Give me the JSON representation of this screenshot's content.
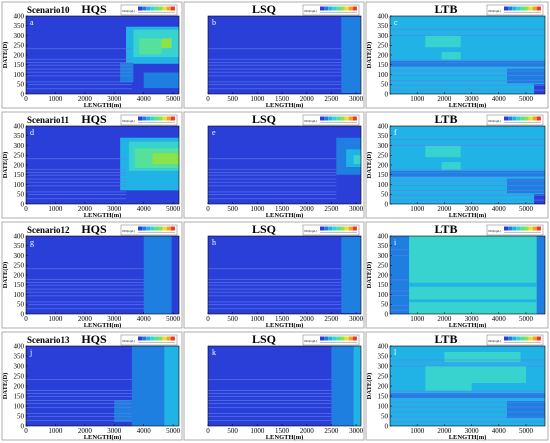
{
  "figure": {
    "row_scenarios": [
      "Scenario10",
      "Scenario11",
      "Scenario12",
      "Scenario13"
    ],
    "col_titles": [
      "HQS",
      "LSQ",
      "LTB"
    ],
    "panel_letters": [
      [
        "a",
        "b",
        "c"
      ],
      [
        "d",
        "e",
        "f"
      ],
      [
        "g",
        "h",
        "i"
      ],
      [
        "j",
        "k",
        "l"
      ]
    ],
    "colorbar_label": "DO(mg/L)"
  },
  "colors": {
    "background_blue": "#2a3fd8",
    "scale": [
      "#2a3fd8",
      "#1f7fe0",
      "#22b3e6",
      "#39d3cf",
      "#56e19a",
      "#8be34a",
      "#e8e13a",
      "#f5a125",
      "#ee3a1e"
    ]
  },
  "chart_data": [
    {
      "type": "heatmap",
      "id": "a",
      "site": "HQS",
      "scenario": "Scenario10",
      "xlabel": "LENGTH(m)",
      "ylabel": "DATE(D)",
      "xlim": [
        0,
        5200
      ],
      "ylim": [
        0,
        400
      ],
      "xticks": [
        0,
        1000,
        2000,
        3000,
        4000,
        5000
      ],
      "yticks": [
        0,
        50,
        100,
        150,
        200,
        250,
        300,
        350,
        400
      ],
      "regions": [
        {
          "x": [
            3400,
            5200
          ],
          "y": [
            155,
            345
          ],
          "level": 2
        },
        {
          "x": [
            3650,
            5200
          ],
          "y": [
            190,
            330
          ],
          "level": 3
        },
        {
          "x": [
            3850,
            4600
          ],
          "y": [
            205,
            285
          ],
          "level": 4
        },
        {
          "x": [
            4600,
            4950
          ],
          "y": [
            235,
            285
          ],
          "level": 5
        },
        {
          "x": [
            3200,
            3650
          ],
          "y": [
            60,
            160
          ],
          "level": 1
        },
        {
          "x": [
            4000,
            5200
          ],
          "y": [
            30,
            110
          ],
          "level": 1
        }
      ],
      "stripes": [
        27,
        48,
        62,
        93,
        112,
        128,
        148,
        162,
        178,
        232
      ],
      "stripe_x": [
        0,
        3600
      ]
    },
    {
      "type": "heatmap",
      "id": "b",
      "site": "LSQ",
      "scenario": "Scenario10",
      "xlabel": "LENGTH(m)",
      "ylabel": "",
      "xlim": [
        0,
        3100
      ],
      "ylim": [
        0,
        400
      ],
      "xticks": [
        0,
        500,
        1000,
        1500,
        2000,
        2500,
        3000
      ],
      "yticks": [],
      "regions": [
        {
          "x": [
            2700,
            3100
          ],
          "y": [
            5,
            395
          ],
          "level": 1
        }
      ],
      "stripes": [
        27,
        48,
        62,
        93,
        112,
        128,
        148,
        162,
        178,
        232
      ],
      "stripe_x": [
        0,
        2700
      ]
    },
    {
      "type": "heatmap",
      "id": "c",
      "site": "LTB",
      "scenario": "Scenario10",
      "xlabel": "LENGTH(m)",
      "ylabel": "DATE(D)",
      "xlim": [
        0,
        5700
      ],
      "ylim": [
        0,
        400
      ],
      "xticks": [
        1000,
        2000,
        3000,
        4000,
        5000
      ],
      "yticks": [
        0,
        50,
        100,
        150,
        200,
        250,
        300,
        350,
        400
      ],
      "regions": [
        {
          "x": [
            0,
            5700
          ],
          "y": [
            0,
            400
          ],
          "level": 2
        },
        {
          "x": [
            1300,
            2600
          ],
          "y": [
            240,
            300
          ],
          "level": 3
        },
        {
          "x": [
            1900,
            2600
          ],
          "y": [
            175,
            215
          ],
          "level": 3
        },
        {
          "x": [
            0,
            5700
          ],
          "y": [
            140,
            170
          ],
          "level": 1
        },
        {
          "x": [
            4300,
            5700
          ],
          "y": [
            55,
            130
          ],
          "level": 1
        },
        {
          "x": [
            5300,
            5700
          ],
          "y": [
            0,
            50
          ],
          "level": 0
        }
      ],
      "stripes": [
        20,
        45,
        70,
        95,
        118,
        140,
        160,
        175,
        300,
        330
      ],
      "stripe_x": [
        0,
        5700
      ]
    },
    {
      "type": "heatmap",
      "id": "d",
      "site": "HQS",
      "scenario": "Scenario11",
      "xlabel": "LENGTH(m)",
      "ylabel": "DATE(D)",
      "xlim": [
        0,
        5200
      ],
      "ylim": [
        0,
        400
      ],
      "xticks": [
        0,
        1000,
        2000,
        3000,
        4000,
        5000
      ],
      "yticks": [
        0,
        50,
        100,
        150,
        200,
        250,
        300,
        350,
        400
      ],
      "regions": [
        {
          "x": [
            3200,
            5200
          ],
          "y": [
            70,
            340
          ],
          "level": 2
        },
        {
          "x": [
            3500,
            5200
          ],
          "y": [
            170,
            320
          ],
          "level": 3
        },
        {
          "x": [
            3700,
            5200
          ],
          "y": [
            185,
            285
          ],
          "level": 4
        },
        {
          "x": [
            4300,
            5200
          ],
          "y": [
            205,
            260
          ],
          "level": 5
        }
      ],
      "stripes": [
        27,
        48,
        62,
        93,
        112,
        128,
        148,
        162,
        178,
        232
      ],
      "stripe_x": [
        0,
        3400
      ]
    },
    {
      "type": "heatmap",
      "id": "e",
      "site": "LSQ",
      "scenario": "Scenario11",
      "xlabel": "LENGTH(m)",
      "ylabel": "",
      "xlim": [
        0,
        3100
      ],
      "ylim": [
        0,
        400
      ],
      "xticks": [
        0,
        500,
        1000,
        1500,
        2000,
        2500,
        3000
      ],
      "yticks": [],
      "regions": [
        {
          "x": [
            2600,
            3100
          ],
          "y": [
            150,
            340
          ],
          "level": 1
        },
        {
          "x": [
            2800,
            3100
          ],
          "y": [
            190,
            280
          ],
          "level": 2
        },
        {
          "x": [
            2950,
            3100
          ],
          "y": [
            205,
            250
          ],
          "level": 3
        }
      ],
      "stripes": [
        27,
        48,
        62,
        93,
        112,
        128,
        148,
        162,
        178,
        232
      ],
      "stripe_x": [
        0,
        2600
      ]
    },
    {
      "type": "heatmap",
      "id": "f",
      "site": "LTB",
      "scenario": "Scenario11",
      "xlabel": "LENGTH(m)",
      "ylabel": "DATE(D)",
      "xlim": [
        0,
        5700
      ],
      "ylim": [
        0,
        400
      ],
      "xticks": [
        1000,
        2000,
        3000,
        4000,
        5000
      ],
      "yticks": [
        0,
        50,
        100,
        150,
        200,
        250,
        300,
        350,
        400
      ],
      "regions": [
        {
          "x": [
            0,
            5700
          ],
          "y": [
            0,
            400
          ],
          "level": 2
        },
        {
          "x": [
            1300,
            2600
          ],
          "y": [
            240,
            300
          ],
          "level": 3
        },
        {
          "x": [
            1900,
            2600
          ],
          "y": [
            175,
            215
          ],
          "level": 3
        },
        {
          "x": [
            0,
            5700
          ],
          "y": [
            140,
            170
          ],
          "level": 1
        },
        {
          "x": [
            4300,
            5700
          ],
          "y": [
            55,
            130
          ],
          "level": 1
        },
        {
          "x": [
            5300,
            5700
          ],
          "y": [
            0,
            50
          ],
          "level": 0
        }
      ],
      "stripes": [
        20,
        45,
        70,
        95,
        118,
        140,
        160,
        175,
        300,
        330
      ],
      "stripe_x": [
        0,
        5700
      ]
    },
    {
      "type": "heatmap",
      "id": "g",
      "site": "HQS",
      "scenario": "Scenario12",
      "xlabel": "LENGTH(m)",
      "ylabel": "DATE(D)",
      "xlim": [
        0,
        5200
      ],
      "ylim": [
        0,
        400
      ],
      "xticks": [
        0,
        1000,
        2000,
        3000,
        4000,
        5000
      ],
      "yticks": [
        0,
        50,
        100,
        150,
        200,
        250,
        300,
        350,
        400
      ],
      "regions": [
        {
          "x": [
            4000,
            5200
          ],
          "y": [
            0,
            400
          ],
          "level": 1
        },
        {
          "x": [
            4950,
            5200
          ],
          "y": [
            0,
            400
          ],
          "level": 0
        }
      ],
      "stripes": [
        27,
        48,
        62,
        93,
        112,
        128,
        148,
        162,
        178,
        232
      ],
      "stripe_x": [
        0,
        4000
      ]
    },
    {
      "type": "heatmap",
      "id": "h",
      "site": "LSQ",
      "scenario": "Scenario12",
      "xlabel": "LENGTH(m)",
      "ylabel": "",
      "xlim": [
        0,
        3100
      ],
      "ylim": [
        0,
        400
      ],
      "xticks": [
        0,
        500,
        1000,
        1500,
        2000,
        2500,
        3000
      ],
      "yticks": [],
      "regions": [
        {
          "x": [
            2700,
            3100
          ],
          "y": [
            5,
            395
          ],
          "level": 1
        }
      ],
      "stripes": [
        27,
        48,
        62,
        93,
        112,
        128,
        148,
        162,
        178,
        232
      ],
      "stripe_x": [
        0,
        2700
      ]
    },
    {
      "type": "heatmap",
      "id": "i",
      "site": "LTB",
      "scenario": "Scenario12",
      "xlabel": "LENGTH(m)",
      "ylabel": "DATE(D)",
      "xlim": [
        0,
        5700
      ],
      "ylim": [
        0,
        400
      ],
      "xticks": [
        1000,
        2000,
        3000,
        4000,
        5000
      ],
      "yticks": [
        0,
        50,
        100,
        150,
        200,
        250,
        300,
        350,
        400
      ],
      "regions": [
        {
          "x": [
            700,
            5400
          ],
          "y": [
            0,
            400
          ],
          "level": 3
        },
        {
          "x": [
            0,
            700
          ],
          "y": [
            0,
            400
          ],
          "level": 1
        },
        {
          "x": [
            5400,
            5700
          ],
          "y": [
            0,
            400
          ],
          "level": 1
        },
        {
          "x": [
            700,
            5400
          ],
          "y": [
            140,
            160
          ],
          "level": 2
        },
        {
          "x": [
            700,
            5400
          ],
          "y": [
            60,
            75
          ],
          "level": 2
        }
      ],
      "stripes": [
        20,
        45,
        95,
        118,
        175,
        300,
        330
      ],
      "stripe_x": [
        0,
        700
      ]
    },
    {
      "type": "heatmap",
      "id": "j",
      "site": "HQS",
      "scenario": "Scenario13",
      "xlabel": "LENGTH(m)",
      "ylabel": "DATE(D)",
      "xlim": [
        0,
        5200
      ],
      "ylim": [
        0,
        400
      ],
      "xticks": [
        0,
        1000,
        2000,
        3000,
        4000,
        5000
      ],
      "yticks": [
        0,
        50,
        100,
        150,
        200,
        250,
        300,
        350,
        400
      ],
      "regions": [
        {
          "x": [
            3600,
            5200
          ],
          "y": [
            0,
            400
          ],
          "level": 1
        },
        {
          "x": [
            4700,
            5200
          ],
          "y": [
            0,
            400
          ],
          "level": 2
        },
        {
          "x": [
            3000,
            3600
          ],
          "y": [
            20,
            130
          ],
          "level": 1
        }
      ],
      "stripes": [
        27,
        48,
        62,
        93,
        112,
        128,
        148,
        162,
        178,
        232
      ],
      "stripe_x": [
        0,
        3600
      ]
    },
    {
      "type": "heatmap",
      "id": "k",
      "site": "LSQ",
      "scenario": "Scenario13",
      "xlabel": "LENGTH(m)",
      "ylabel": "",
      "xlim": [
        0,
        3100
      ],
      "ylim": [
        0,
        400
      ],
      "xticks": [
        0,
        500,
        1000,
        1500,
        2000,
        2500,
        3000
      ],
      "yticks": [],
      "regions": [
        {
          "x": [
            2500,
            3100
          ],
          "y": [
            0,
            400
          ],
          "level": 1
        },
        {
          "x": [
            2950,
            3100
          ],
          "y": [
            0,
            400
          ],
          "level": 2
        }
      ],
      "stripes": [
        27,
        48,
        62,
        93,
        112,
        128,
        148,
        162,
        178,
        232
      ],
      "stripe_x": [
        0,
        2500
      ]
    },
    {
      "type": "heatmap",
      "id": "l",
      "site": "LTB",
      "scenario": "Scenario13",
      "xlabel": "LENGTH(m)",
      "ylabel": "DATE(D)",
      "xlim": [
        0,
        5700
      ],
      "ylim": [
        0,
        400
      ],
      "xticks": [
        1000,
        2000,
        3000,
        4000,
        5000
      ],
      "yticks": [
        0,
        50,
        100,
        150,
        200,
        250,
        300,
        350,
        400
      ],
      "regions": [
        {
          "x": [
            0,
            5700
          ],
          "y": [
            0,
            400
          ],
          "level": 2
        },
        {
          "x": [
            2000,
            4800
          ],
          "y": [
            320,
            370
          ],
          "level": 3
        },
        {
          "x": [
            1300,
            5000
          ],
          "y": [
            215,
            300
          ],
          "level": 3
        },
        {
          "x": [
            1300,
            3000
          ],
          "y": [
            175,
            215
          ],
          "level": 3
        },
        {
          "x": [
            0,
            5700
          ],
          "y": [
            140,
            165
          ],
          "level": 1
        },
        {
          "x": [
            4300,
            5700
          ],
          "y": [
            40,
            125
          ],
          "level": 1
        }
      ],
      "stripes": [
        20,
        45,
        70,
        95,
        118,
        140,
        160,
        175,
        300,
        330
      ],
      "stripe_x": [
        0,
        5700
      ]
    }
  ]
}
